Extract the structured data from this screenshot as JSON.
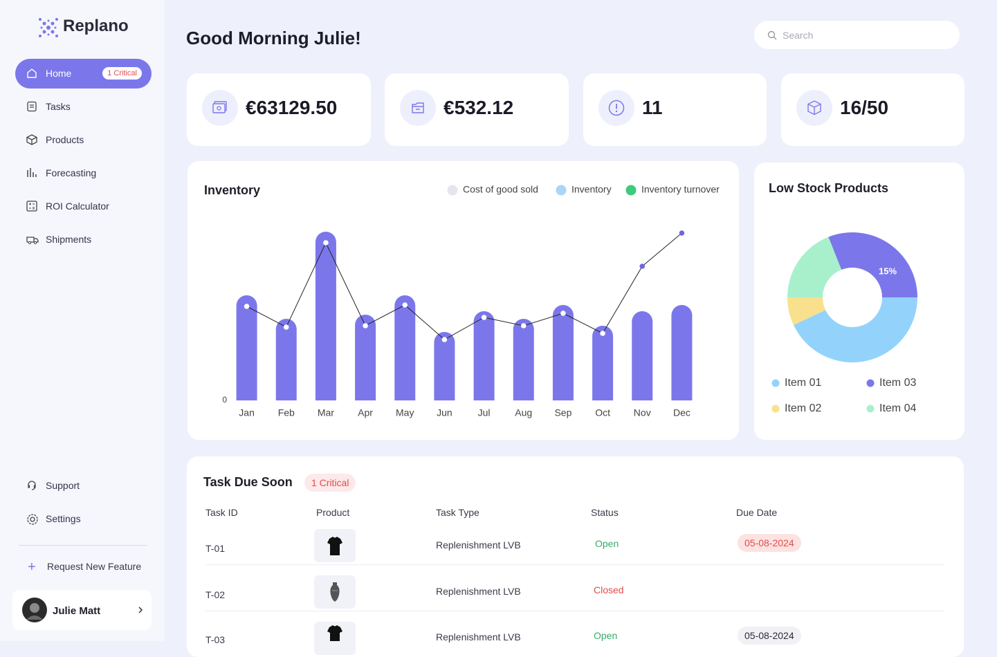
{
  "sidebar": {
    "brand": "Replano",
    "nav": [
      {
        "label": "Home",
        "badge": "1 Critical"
      },
      {
        "label": "Tasks"
      },
      {
        "label": "Products"
      },
      {
        "label": "Forecasting"
      },
      {
        "label": "ROI Calculator"
      },
      {
        "label": "Shipments"
      }
    ],
    "footer_nav": [
      "Support",
      "Settings"
    ],
    "request": "Request New Feature",
    "user": "Julie Matt"
  },
  "header": {
    "greeting": "Good Morning Julie!",
    "search_placeholder": "Search"
  },
  "stats": [
    "€63129.50",
    "€532.12",
    "11",
    "16/50"
  ],
  "chart_data": [
    {
      "type": "bar",
      "title": "Inventory",
      "legend": [
        {
          "label": "Cost of good sold",
          "color": "#e5e5ee"
        },
        {
          "label": "Inventory",
          "color": "#a9d5f8"
        },
        {
          "label": "Inventory turnover",
          "color": "#3fc97a"
        }
      ],
      "categories": [
        "Jan",
        "Feb",
        "Mar",
        "Apr",
        "May",
        "Jun",
        "Jul",
        "Aug",
        "Sep",
        "Oct",
        "Nov",
        "Dec"
      ],
      "series": [
        {
          "type": "bar",
          "color": "#7b77ea",
          "values": [
            152,
            118,
            244,
            124,
            152,
            99,
            129,
            118,
            138,
            108,
            129,
            138
          ]
        },
        {
          "type": "line",
          "color": "#6d67e4",
          "values": [
            136,
            106,
            228,
            108,
            138,
            88,
            120,
            108,
            126,
            97,
            194,
            242
          ]
        }
      ],
      "ylim": [
        0,
        280
      ],
      "yticks": [
        0
      ],
      "grid": false
    },
    {
      "type": "pie",
      "title": "Low Stock Products",
      "categories": [
        "Item 01",
        "Item 02",
        "Item 04",
        "Item 03"
      ],
      "values": [
        43,
        7,
        19,
        31
      ],
      "colors": [
        "#93d3fb",
        "#f9e08c",
        "#a8f0cc",
        "#7b77ea"
      ],
      "annotation": "15%"
    }
  ],
  "task_table": {
    "title": "Task Due Soon",
    "badge": "1 Critical",
    "columns": [
      "Task ID",
      "Product",
      "Task Type",
      "Status",
      "Due Date"
    ],
    "rows": [
      [
        "T-01",
        "Replenishment LVB",
        "Open",
        "05-08-2024"
      ],
      [
        "T-02",
        "Replenishment LVB",
        "Closed"
      ],
      [
        "T-03",
        "Replenishment LVB",
        "Open",
        "05-08-2024"
      ]
    ]
  }
}
